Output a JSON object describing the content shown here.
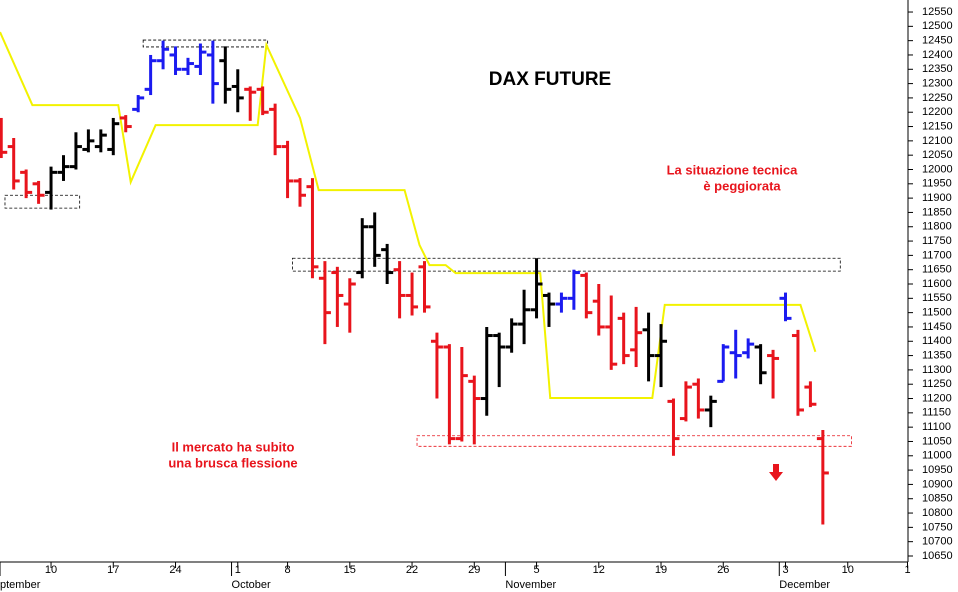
{
  "chart_data": {
    "type": "ohlc",
    "title": "DAX FUTURE",
    "annotations": [
      [
        "La situazione tecnica",
        "è peggiorata"
      ],
      [
        "Il mercato ha subito",
        "una brusca flessione"
      ]
    ],
    "x": [
      -4,
      -3,
      -2,
      -1,
      0,
      1,
      2,
      3,
      4,
      5,
      6,
      7,
      8,
      9,
      10,
      11,
      12,
      13,
      14,
      15,
      16,
      17,
      18,
      19,
      20,
      21,
      22,
      23,
      24,
      25,
      26,
      27,
      28,
      29,
      30,
      31,
      32,
      33,
      34,
      35,
      36,
      37,
      38,
      39,
      40,
      41,
      42,
      43,
      44,
      45,
      46,
      47,
      48,
      49,
      50,
      51,
      52,
      53,
      54,
      55,
      56,
      57,
      58,
      59,
      60,
      61,
      62
    ],
    "open": [
      12170,
      12080,
      11990,
      11950,
      11920,
      11990,
      12010,
      12070,
      12080,
      12070,
      12180,
      12210,
      12280,
      12380,
      12400,
      12350,
      12360,
      12400,
      12380,
      12290,
      12280,
      12280,
      12210,
      12080,
      11960,
      11940,
      11620,
      11640,
      11530,
      11640,
      11800,
      11720,
      11650,
      11560,
      11660,
      11400,
      11380,
      11060,
      11260,
      11200,
      11420,
      11380,
      11460,
      11510,
      11560,
      11530,
      11550,
      11630,
      11540,
      11450,
      11480,
      11370,
      11440,
      11350,
      11190,
      11130,
      11250,
      11160,
      11260,
      11360,
      11360,
      11380,
      11350,
      11550,
      11420,
      11240,
      11060
    ],
    "high": [
      12180,
      12110,
      12000,
      11960,
      12010,
      12050,
      12130,
      12140,
      12140,
      12180,
      12190,
      12260,
      12400,
      12450,
      12430,
      12390,
      12440,
      12450,
      12430,
      12350,
      12290,
      12290,
      12230,
      12100,
      11970,
      11970,
      11680,
      11660,
      11620,
      11830,
      11850,
      11740,
      11680,
      11640,
      11680,
      11430,
      11390,
      11380,
      11280,
      11450,
      11430,
      11480,
      11580,
      11690,
      11570,
      11570,
      11650,
      11640,
      11600,
      11560,
      11500,
      11520,
      11500,
      11460,
      11200,
      11260,
      11270,
      11210,
      11390,
      11440,
      11410,
      11390,
      11370,
      11570,
      11440,
      11260,
      11090
    ],
    "low": [
      12040,
      11930,
      11900,
      11880,
      11860,
      11960,
      12000,
      12060,
      12060,
      12050,
      12130,
      12200,
      12260,
      12350,
      12330,
      12330,
      12330,
      12230,
      12230,
      12200,
      12170,
      12190,
      12050,
      11900,
      11870,
      11620,
      11390,
      11450,
      11430,
      11620,
      11660,
      11600,
      11480,
      11490,
      11500,
      11200,
      11040,
      11050,
      11040,
      11140,
      11240,
      11360,
      11390,
      11480,
      11450,
      11500,
      11510,
      11480,
      11420,
      11300,
      11320,
      11310,
      11260,
      11240,
      11000,
      11120,
      11130,
      11100,
      11260,
      11270,
      11340,
      11250,
      11200,
      11470,
      11140,
      11170,
      10760
    ],
    "close": [
      12060,
      11960,
      11920,
      11910,
      11990,
      12010,
      12080,
      12100,
      12120,
      12160,
      12150,
      12250,
      12380,
      12420,
      12350,
      12370,
      12410,
      12300,
      12280,
      12250,
      12270,
      12200,
      12080,
      11960,
      11910,
      11660,
      11500,
      11560,
      11600,
      11800,
      11700,
      11640,
      11560,
      11520,
      11520,
      11380,
      11060,
      11280,
      11200,
      11420,
      11380,
      11460,
      11510,
      11600,
      11530,
      11550,
      11640,
      11500,
      11450,
      11320,
      11350,
      11430,
      11350,
      11400,
      11060,
      11240,
      11160,
      11190,
      11380,
      11350,
      11390,
      11290,
      11340,
      11480,
      11160,
      11180,
      10940
    ],
    "colors": [
      "#e8141c",
      "#e8141c",
      "#e8141c",
      "#e8141c",
      "#000000",
      "#000000",
      "#000000",
      "#000000",
      "#000000",
      "#000000",
      "#e8141c",
      "#1b1bf0",
      "#1b1bf0",
      "#1b1bf0",
      "#1b1bf0",
      "#1b1bf0",
      "#1b1bf0",
      "#1b1bf0",
      "#000000",
      "#000000",
      "#e8141c",
      "#e8141c",
      "#e8141c",
      "#e8141c",
      "#e8141c",
      "#e8141c",
      "#e8141c",
      "#e8141c",
      "#e8141c",
      "#000000",
      "#000000",
      "#000000",
      "#e8141c",
      "#e8141c",
      "#e8141c",
      "#e8141c",
      "#e8141c",
      "#e8141c",
      "#e8141c",
      "#000000",
      "#000000",
      "#000000",
      "#000000",
      "#000000",
      "#000000",
      "#1b1bf0",
      "#1b1bf0",
      "#e8141c",
      "#e8141c",
      "#e8141c",
      "#e8141c",
      "#e8141c",
      "#000000",
      "#000000",
      "#e8141c",
      "#e8141c",
      "#e8141c",
      "#000000",
      "#1b1bf0",
      "#1b1bf0",
      "#1b1bf0",
      "#000000",
      "#e8141c",
      "#1b1bf0",
      "#e8141c",
      "#e8141c",
      "#e8141c"
    ],
    "line": {
      "color": "#f2f200",
      "x": [
        -4.1,
        -1.5,
        5.4,
        6.4,
        8.4,
        16.6,
        17.3,
        20,
        21.5,
        28.4,
        29.6,
        30.4,
        31.7,
        32.5,
        39.3,
        40.1,
        48.3,
        49.3,
        60.2,
        61.4
      ],
      "values": [
        12480,
        12225,
        12225,
        11956,
        12155,
        12155,
        12435,
        12180,
        11928,
        11928,
        11736,
        11666,
        11666,
        11638,
        11638,
        11202,
        11202,
        11527,
        11527,
        11363
      ]
    },
    "zones": [
      {
        "x": [
          -3.7,
          2.3
        ],
        "y": [
          11865,
          11910
        ],
        "color": "#000000"
      },
      {
        "x": [
          7.4,
          17.4
        ],
        "y": [
          12428,
          12452
        ],
        "color": "#000000"
      },
      {
        "x": [
          19.4,
          63.4
        ],
        "y": [
          11645,
          11690
        ],
        "color": "#000000"
      },
      {
        "x": [
          29.4,
          64.3
        ],
        "y": [
          11033,
          11070
        ],
        "color": "#e8141c"
      }
    ],
    "xlim": [
      -4.1,
      68.84
    ],
    "ylim": [
      10629,
      12592
    ],
    "yticks": [
      10650,
      10700,
      10750,
      10800,
      10850,
      10900,
      10950,
      11000,
      11050,
      11100,
      11150,
      11200,
      11250,
      11300,
      11350,
      11400,
      11450,
      11500,
      11550,
      11600,
      11650,
      11700,
      11750,
      11800,
      11850,
      11900,
      11950,
      12000,
      12050,
      12100,
      12150,
      12200,
      12250,
      12300,
      12350,
      12400,
      12450,
      12500,
      12550
    ],
    "xticks": [
      {
        "value": 0,
        "label": "10"
      },
      {
        "value": 5,
        "label": "17"
      },
      {
        "value": 10,
        "label": "24"
      },
      {
        "value": 15,
        "label": "1"
      },
      {
        "value": 19,
        "label": "8"
      },
      {
        "value": 24,
        "label": "15"
      },
      {
        "value": 29,
        "label": "22"
      },
      {
        "value": 34,
        "label": "29"
      },
      {
        "value": 39,
        "label": "5"
      },
      {
        "value": 44,
        "label": "12"
      },
      {
        "value": 49,
        "label": "19"
      },
      {
        "value": 54,
        "label": "26"
      },
      {
        "value": 59,
        "label": "3"
      },
      {
        "value": 64,
        "label": "10"
      },
      {
        "value": 68.8,
        "label": "1"
      }
    ],
    "month_ticks": [
      {
        "value": -4.1,
        "label": "ptember"
      },
      {
        "value": 14.5,
        "label": "October"
      },
      {
        "value": 36.5,
        "label": "November"
      },
      {
        "value": 58.5,
        "label": "December"
      }
    ]
  }
}
